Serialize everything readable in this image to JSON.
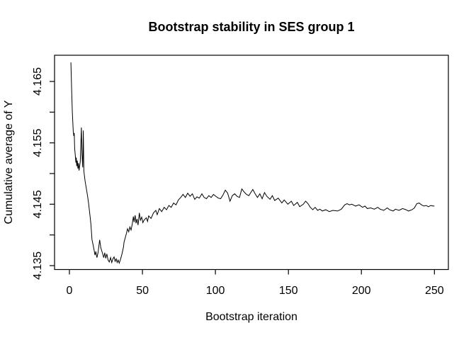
{
  "figure": {
    "background": "#ffffff",
    "line_color": "#000000",
    "axis_color": "#000000"
  },
  "chart_data": {
    "type": "line",
    "title": "Bootstrap stability in SES group 1",
    "xlabel": "Bootstrap iteration",
    "ylabel": "Cumulative average of Y",
    "xlim": [
      0,
      260
    ],
    "ylim": [
      4.1344,
      4.1693
    ],
    "x_ticks": [
      0,
      50,
      100,
      150,
      200,
      250
    ],
    "y_ticks": [
      {
        "value": 4.135,
        "label": "4.135"
      },
      {
        "value": 4.145,
        "label": "4.145"
      },
      {
        "value": 4.155,
        "label": "4.155"
      },
      {
        "value": 4.165,
        "label": "4.165"
      }
    ],
    "y_minor_ticks": [
      4.135,
      4.14,
      4.145,
      4.15,
      4.155,
      4.16,
      4.165
    ],
    "grid": false,
    "legend": "none",
    "series_name": "cumulative-average-of-Y",
    "points": [
      [
        1,
        4.1681
      ],
      [
        1.5,
        4.1638
      ],
      [
        2,
        4.16
      ],
      [
        2.6,
        4.1569
      ],
      [
        3,
        4.1561
      ],
      [
        3.3,
        4.1566
      ],
      [
        3.6,
        4.1541
      ],
      [
        4,
        4.1531
      ],
      [
        4.4,
        4.1518
      ],
      [
        4.7,
        4.1526
      ],
      [
        5,
        4.1512
      ],
      [
        5.4,
        4.1521
      ],
      [
        5.8,
        4.1508
      ],
      [
        6.2,
        4.1517
      ],
      [
        6.6,
        4.1505
      ],
      [
        7,
        4.1512
      ],
      [
        7.4,
        4.1519
      ],
      [
        8.2,
        4.1575
      ],
      [
        8.6,
        4.1532
      ],
      [
        9.1,
        4.151
      ],
      [
        9.5,
        4.157
      ],
      [
        9.9,
        4.1504
      ],
      [
        10.7,
        4.1488
      ],
      [
        11.5,
        4.1477
      ],
      [
        12.3,
        4.1465
      ],
      [
        13.1,
        4.1452
      ],
      [
        14,
        4.1433
      ],
      [
        14.7,
        4.1418
      ],
      [
        15.5,
        4.1392
      ],
      [
        16.2,
        4.1384
      ],
      [
        16.8,
        4.1377
      ],
      [
        17.5,
        4.1367
      ],
      [
        18.1,
        4.1373
      ],
      [
        18.8,
        4.1363
      ],
      [
        19.6,
        4.1371
      ],
      [
        20.7,
        4.1392
      ],
      [
        21.5,
        4.1379
      ],
      [
        22.8,
        4.1369
      ],
      [
        23.5,
        4.1363
      ],
      [
        24.2,
        4.1371
      ],
      [
        24.9,
        4.1362
      ],
      [
        25.6,
        4.1369
      ],
      [
        26.5,
        4.1359
      ],
      [
        27.3,
        4.1356
      ],
      [
        28.2,
        4.1363
      ],
      [
        29,
        4.1355
      ],
      [
        29.8,
        4.1361
      ],
      [
        30.6,
        4.1364
      ],
      [
        31.3,
        4.1357
      ],
      [
        32,
        4.1361
      ],
      [
        32.7,
        4.1355
      ],
      [
        33.4,
        4.1359
      ],
      [
        34.1,
        4.1354
      ],
      [
        35,
        4.136
      ],
      [
        36,
        4.1369
      ],
      [
        37,
        4.138
      ],
      [
        37.4,
        4.1388
      ],
      [
        38.2,
        4.1395
      ],
      [
        39,
        4.1402
      ],
      [
        39.8,
        4.141
      ],
      [
        40.6,
        4.1405
      ],
      [
        41.4,
        4.1413
      ],
      [
        42.2,
        4.1408
      ],
      [
        43,
        4.1417
      ],
      [
        43.8,
        4.143
      ],
      [
        44.3,
        4.1421
      ],
      [
        45,
        4.1432
      ],
      [
        45.6,
        4.1419
      ],
      [
        46.3,
        4.1426
      ],
      [
        47,
        4.1416
      ],
      [
        47.9,
        4.1436
      ],
      [
        48.6,
        4.1424
      ],
      [
        49.5,
        4.1429
      ],
      [
        50.3,
        4.142
      ],
      [
        51.1,
        4.1424
      ],
      [
        52.7,
        4.1428
      ],
      [
        53.5,
        4.1422
      ],
      [
        54.3,
        4.1431
      ],
      [
        55.9,
        4.1427
      ],
      [
        57.6,
        4.1436
      ],
      [
        59.2,
        4.144
      ],
      [
        60.1,
        4.1433
      ],
      [
        61.6,
        4.1443
      ],
      [
        63.2,
        4.1438
      ],
      [
        64.9,
        4.1445
      ],
      [
        66.5,
        4.1441
      ],
      [
        68.1,
        4.1448
      ],
      [
        69.7,
        4.1445
      ],
      [
        71.3,
        4.1452
      ],
      [
        73,
        4.1449
      ],
      [
        74.6,
        4.1457
      ],
      [
        76.2,
        4.1461
      ],
      [
        77.8,
        4.1466
      ],
      [
        79.4,
        4.1461
      ],
      [
        81,
        4.1468
      ],
      [
        82.6,
        4.1463
      ],
      [
        84.2,
        4.1467
      ],
      [
        85.8,
        4.1458
      ],
      [
        87.4,
        4.1462
      ],
      [
        89,
        4.146
      ],
      [
        90.7,
        4.1467
      ],
      [
        92.3,
        4.1461
      ],
      [
        93.9,
        4.1459
      ],
      [
        95.5,
        4.1464
      ],
      [
        97.1,
        4.1461
      ],
      [
        98.7,
        4.1466
      ],
      [
        100.3,
        4.1463
      ],
      [
        102,
        4.146
      ],
      [
        103.6,
        4.1459
      ],
      [
        105.2,
        4.1465
      ],
      [
        106.8,
        4.1473
      ],
      [
        108.4,
        4.1468
      ],
      [
        110,
        4.1455
      ],
      [
        111.6,
        4.1464
      ],
      [
        113.2,
        4.1467
      ],
      [
        114.8,
        4.1463
      ],
      [
        116.5,
        4.1461
      ],
      [
        118.1,
        4.1475
      ],
      [
        119.7,
        4.147
      ],
      [
        121.3,
        4.1466
      ],
      [
        122.9,
        4.1464
      ],
      [
        124.5,
        4.147
      ],
      [
        125.6,
        4.1474
      ],
      [
        127.2,
        4.1467
      ],
      [
        128.8,
        4.1461
      ],
      [
        130.4,
        4.1467
      ],
      [
        132,
        4.1459
      ],
      [
        133.6,
        4.1469
      ],
      [
        135.2,
        4.1463
      ],
      [
        137.4,
        4.1458
      ],
      [
        139,
        4.1464
      ],
      [
        140.6,
        4.1456
      ],
      [
        143,
        4.146
      ],
      [
        145.5,
        4.1452
      ],
      [
        147.1,
        4.1457
      ],
      [
        149.6,
        4.145
      ],
      [
        152,
        4.1455
      ],
      [
        153.6,
        4.1448
      ],
      [
        156.1,
        4.1453
      ],
      [
        157.7,
        4.1446
      ],
      [
        160.2,
        4.145
      ],
      [
        161.8,
        4.1455
      ],
      [
        163.4,
        4.1451
      ],
      [
        165,
        4.1445
      ],
      [
        166.7,
        4.1441
      ],
      [
        168.3,
        4.1445
      ],
      [
        170,
        4.144
      ],
      [
        171.6,
        4.1442
      ],
      [
        173.2,
        4.1439
      ],
      [
        175.6,
        4.1441
      ],
      [
        178,
        4.1438
      ],
      [
        180.5,
        4.144
      ],
      [
        183.7,
        4.1439
      ],
      [
        186.2,
        4.1442
      ],
      [
        188.6,
        4.1449
      ],
      [
        190.2,
        4.1451
      ],
      [
        191.8,
        4.1449
      ],
      [
        193.4,
        4.145
      ],
      [
        196,
        4.1447
      ],
      [
        198.4,
        4.1449
      ],
      [
        200.8,
        4.1445
      ],
      [
        202.4,
        4.1447
      ],
      [
        204,
        4.1443
      ],
      [
        206.4,
        4.1444
      ],
      [
        208.8,
        4.1442
      ],
      [
        211.2,
        4.1445
      ],
      [
        212.8,
        4.1442
      ],
      [
        215.3,
        4.144
      ],
      [
        217.7,
        4.1444
      ],
      [
        219.3,
        4.1441
      ],
      [
        221.7,
        4.1439
      ],
      [
        223.3,
        4.1442
      ],
      [
        225.7,
        4.144
      ],
      [
        228.2,
        4.1443
      ],
      [
        230.6,
        4.1441
      ],
      [
        232.2,
        4.1439
      ],
      [
        234.6,
        4.1441
      ],
      [
        236.3,
        4.1444
      ],
      [
        237.9,
        4.1451
      ],
      [
        239.5,
        4.1452
      ],
      [
        241.1,
        4.1449
      ],
      [
        242.7,
        4.1447
      ],
      [
        244.3,
        4.1448
      ],
      [
        245.9,
        4.1446
      ],
      [
        247.5,
        4.1448
      ],
      [
        249.2,
        4.1447
      ],
      [
        250,
        4.1447
      ]
    ]
  }
}
